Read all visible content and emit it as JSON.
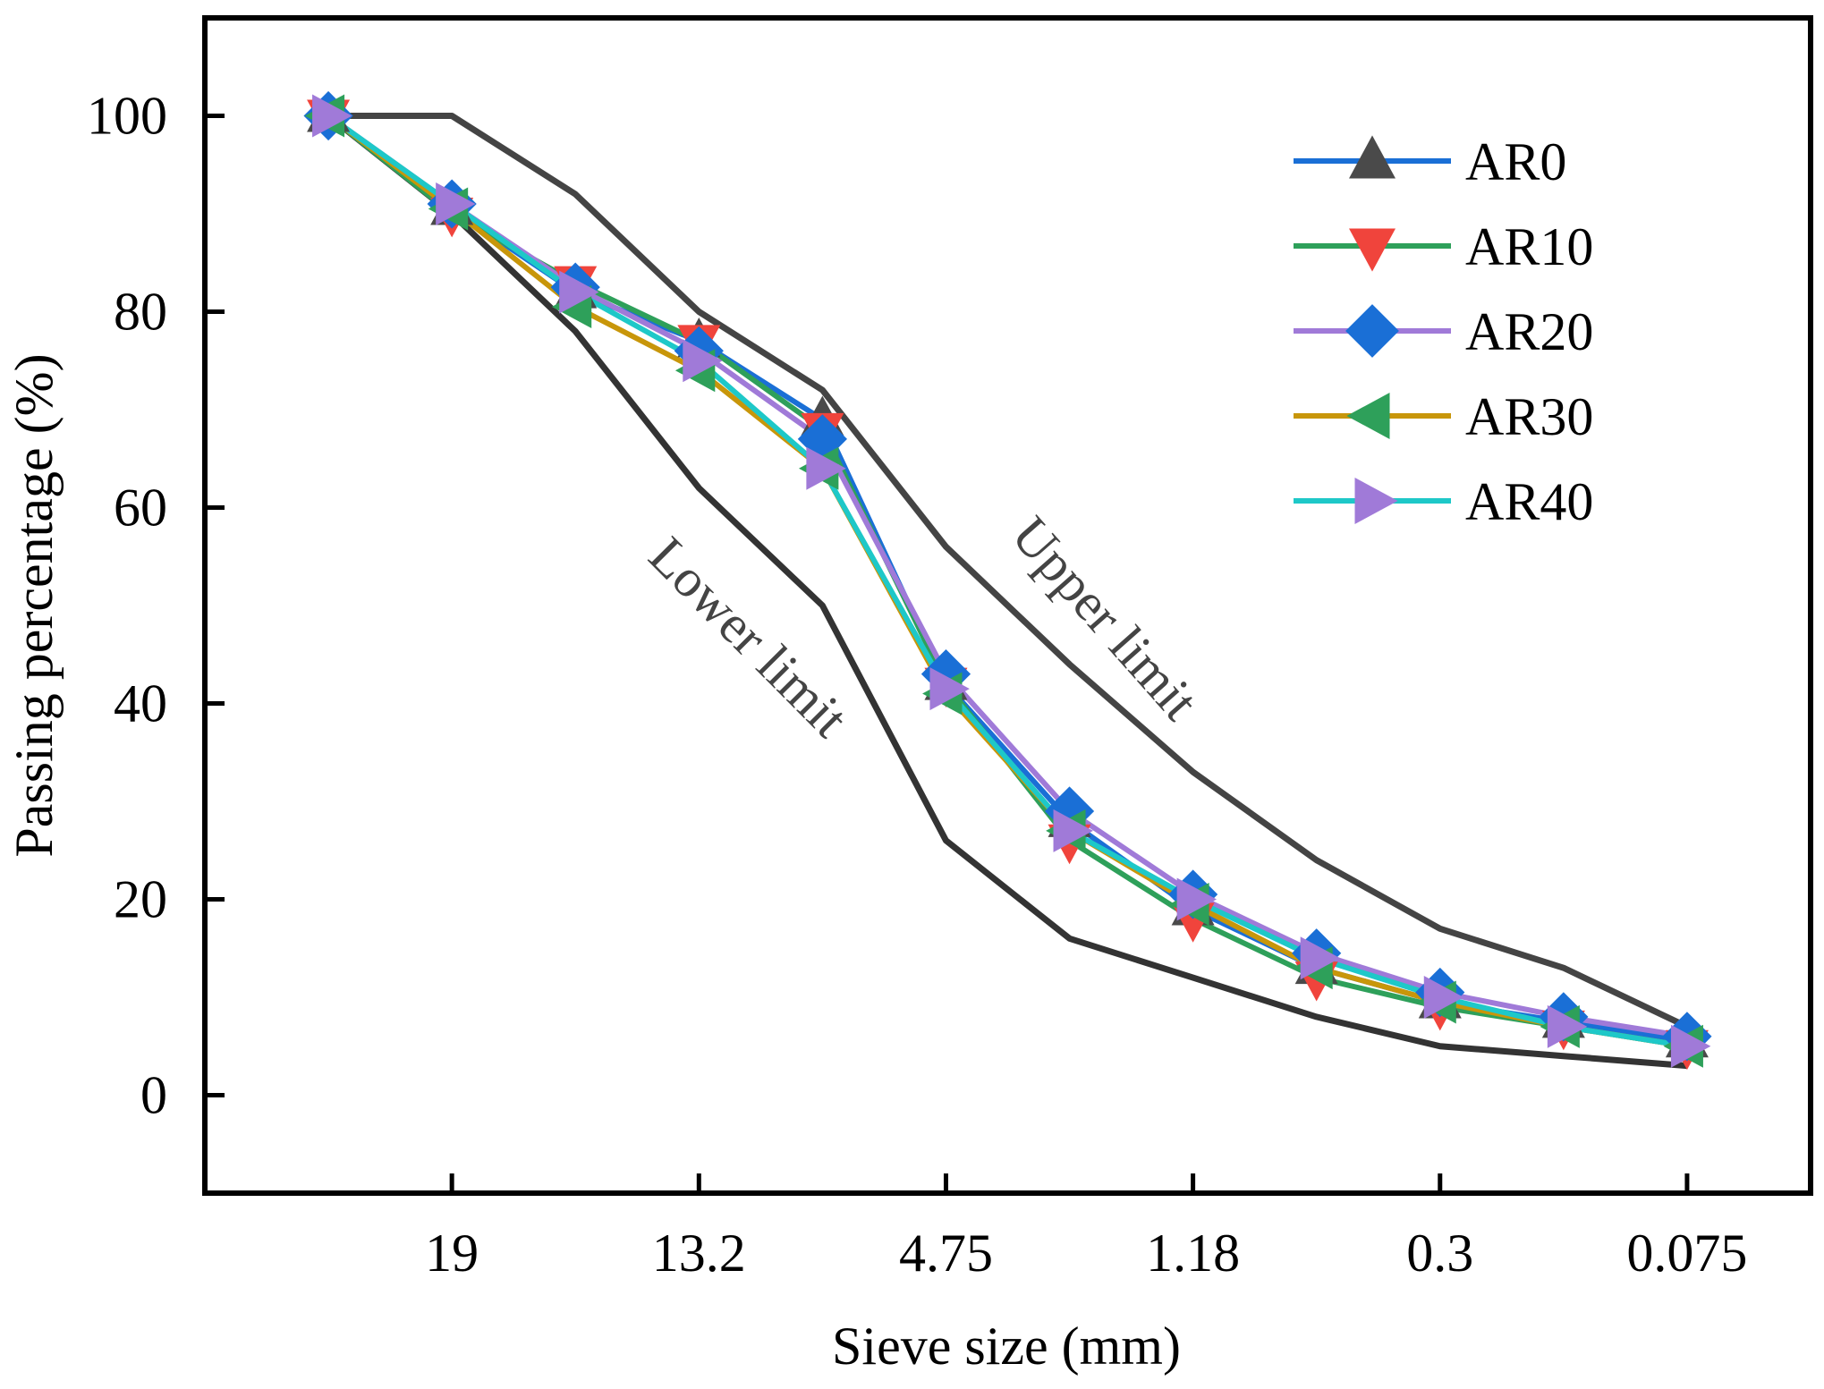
{
  "chart_data": {
    "type": "line",
    "xlabel": "Sieve size (mm)",
    "ylabel": "Passing percentage (%)",
    "ylim": [
      -10,
      110
    ],
    "yticks": [
      0,
      20,
      40,
      60,
      80,
      100
    ],
    "x_positions": [
      0,
      1,
      2,
      3,
      4,
      5,
      6,
      7,
      8,
      9,
      10,
      11
    ],
    "xlim": [
      -1,
      12
    ],
    "x_tick_positions": [
      1,
      3,
      5,
      7,
      9,
      11
    ],
    "x_tick_labels": [
      "19",
      "13.2",
      "4.75",
      "1.18",
      "0.3",
      "0.075"
    ],
    "limits": [
      {
        "name": "Upper limit",
        "color": "#444444",
        "values": [
          100,
          100,
          92,
          80,
          72,
          56,
          44,
          33,
          24,
          17,
          13,
          7
        ]
      },
      {
        "name": "Lower limit",
        "color": "#333333",
        "values": [
          100,
          90,
          78,
          62,
          50,
          26,
          16,
          12,
          8,
          5,
          4,
          3
        ]
      }
    ],
    "series": [
      {
        "name": "AR0",
        "color": "#1a6fd6",
        "marker": "triangle-up",
        "marker_color": "#4a4a4a",
        "values": [
          100,
          90.5,
          82,
          77,
          69,
          42,
          28,
          19,
          13,
          9.5,
          7.5,
          5.5
        ]
      },
      {
        "name": "AR10",
        "color": "#2ea05a",
        "marker": "triangle-down",
        "marker_color": "#f0443c",
        "values": [
          100,
          90,
          83,
          77,
          68,
          42,
          26,
          18,
          12,
          9,
          7,
          5
        ]
      },
      {
        "name": "AR20",
        "color": "#a07ad8",
        "marker": "diamond",
        "marker_color": "#1a6fd6",
        "values": [
          100,
          91,
          82.5,
          76,
          67,
          43,
          29,
          20.5,
          14.5,
          10.5,
          8,
          6
        ]
      },
      {
        "name": "AR30",
        "color": "#c8960a",
        "marker": "triangle-left",
        "marker_color": "#2ea05a",
        "values": [
          100,
          90.5,
          80.5,
          74,
          64,
          41,
          27,
          19.5,
          13,
          9.5,
          7,
          5
        ]
      },
      {
        "name": "AR40",
        "color": "#1ec8c8",
        "marker": "triangle-right",
        "marker_color": "#a07ad8",
        "values": [
          100,
          91,
          82,
          75,
          64,
          41.5,
          27,
          20,
          14,
          10,
          7,
          5
        ]
      }
    ],
    "annotations": [
      {
        "text": "Upper limit",
        "x": 6.18,
        "y": 47.5,
        "rotation": 48.5
      },
      {
        "text": "Lower limit",
        "x": 3.3,
        "y": 45.5,
        "rotation": 45.2
      }
    ],
    "legend_position": "top-right"
  }
}
